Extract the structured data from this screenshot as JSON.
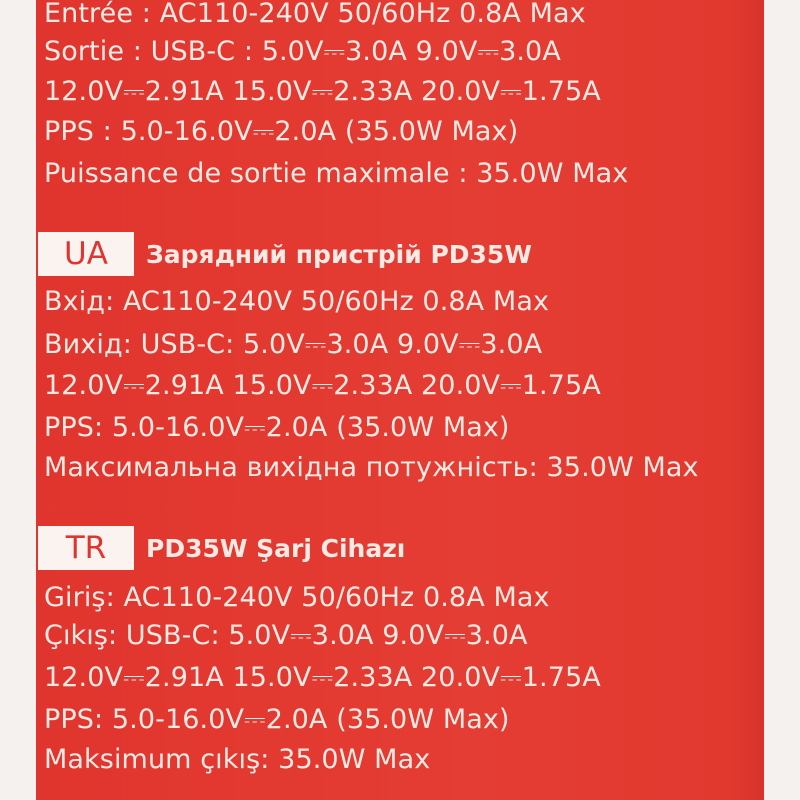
{
  "fr": {
    "lines": [
      "Entrée : AC110-240V 50/60Hz 0.8A Max",
      "Sortie : USB-C : 5.0V⎓3.0A 9.0V⎓3.0A",
      "12.0V⎓2.91A 15.0V⎓2.33A 20.0V⎓1.75A",
      "PPS : 5.0-16.0V⎓2.0A (35.0W Max)",
      "Puissance de sortie maximale : 35.0W Max"
    ]
  },
  "ua": {
    "badge": "UA",
    "title": "Зарядний пристрій PD35W",
    "lines": [
      "Вхід: AC110-240V 50/60Hz 0.8A Max",
      "Вихід: USB-C: 5.0V⎓3.0A 9.0V⎓3.0A",
      "12.0V⎓2.91A 15.0V⎓2.33A 20.0V⎓1.75A",
      "PPS: 5.0-16.0V⎓2.0A (35.0W Max)",
      "Максимальна вихідна потужність: 35.0W Max"
    ]
  },
  "tr": {
    "badge": "TR",
    "title": "PD35W Şarj Cihazı",
    "lines": [
      "Giriş: AC110-240V 50/60Hz 0.8A Max",
      "Çıkış: USB-C: 5.0V⎓3.0A 9.0V⎓3.0A",
      "12.0V⎓2.91A 15.0V⎓2.33A 20.0V⎓1.75A",
      "PPS: 5.0-16.0V⎓2.0A (35.0W Max)",
      "Maksimum çıkış: 35.0W Max"
    ]
  },
  "colors": {
    "panel": "#e2392f",
    "text": "#fbe9e4",
    "badge_bg": "#fbf3f0"
  }
}
